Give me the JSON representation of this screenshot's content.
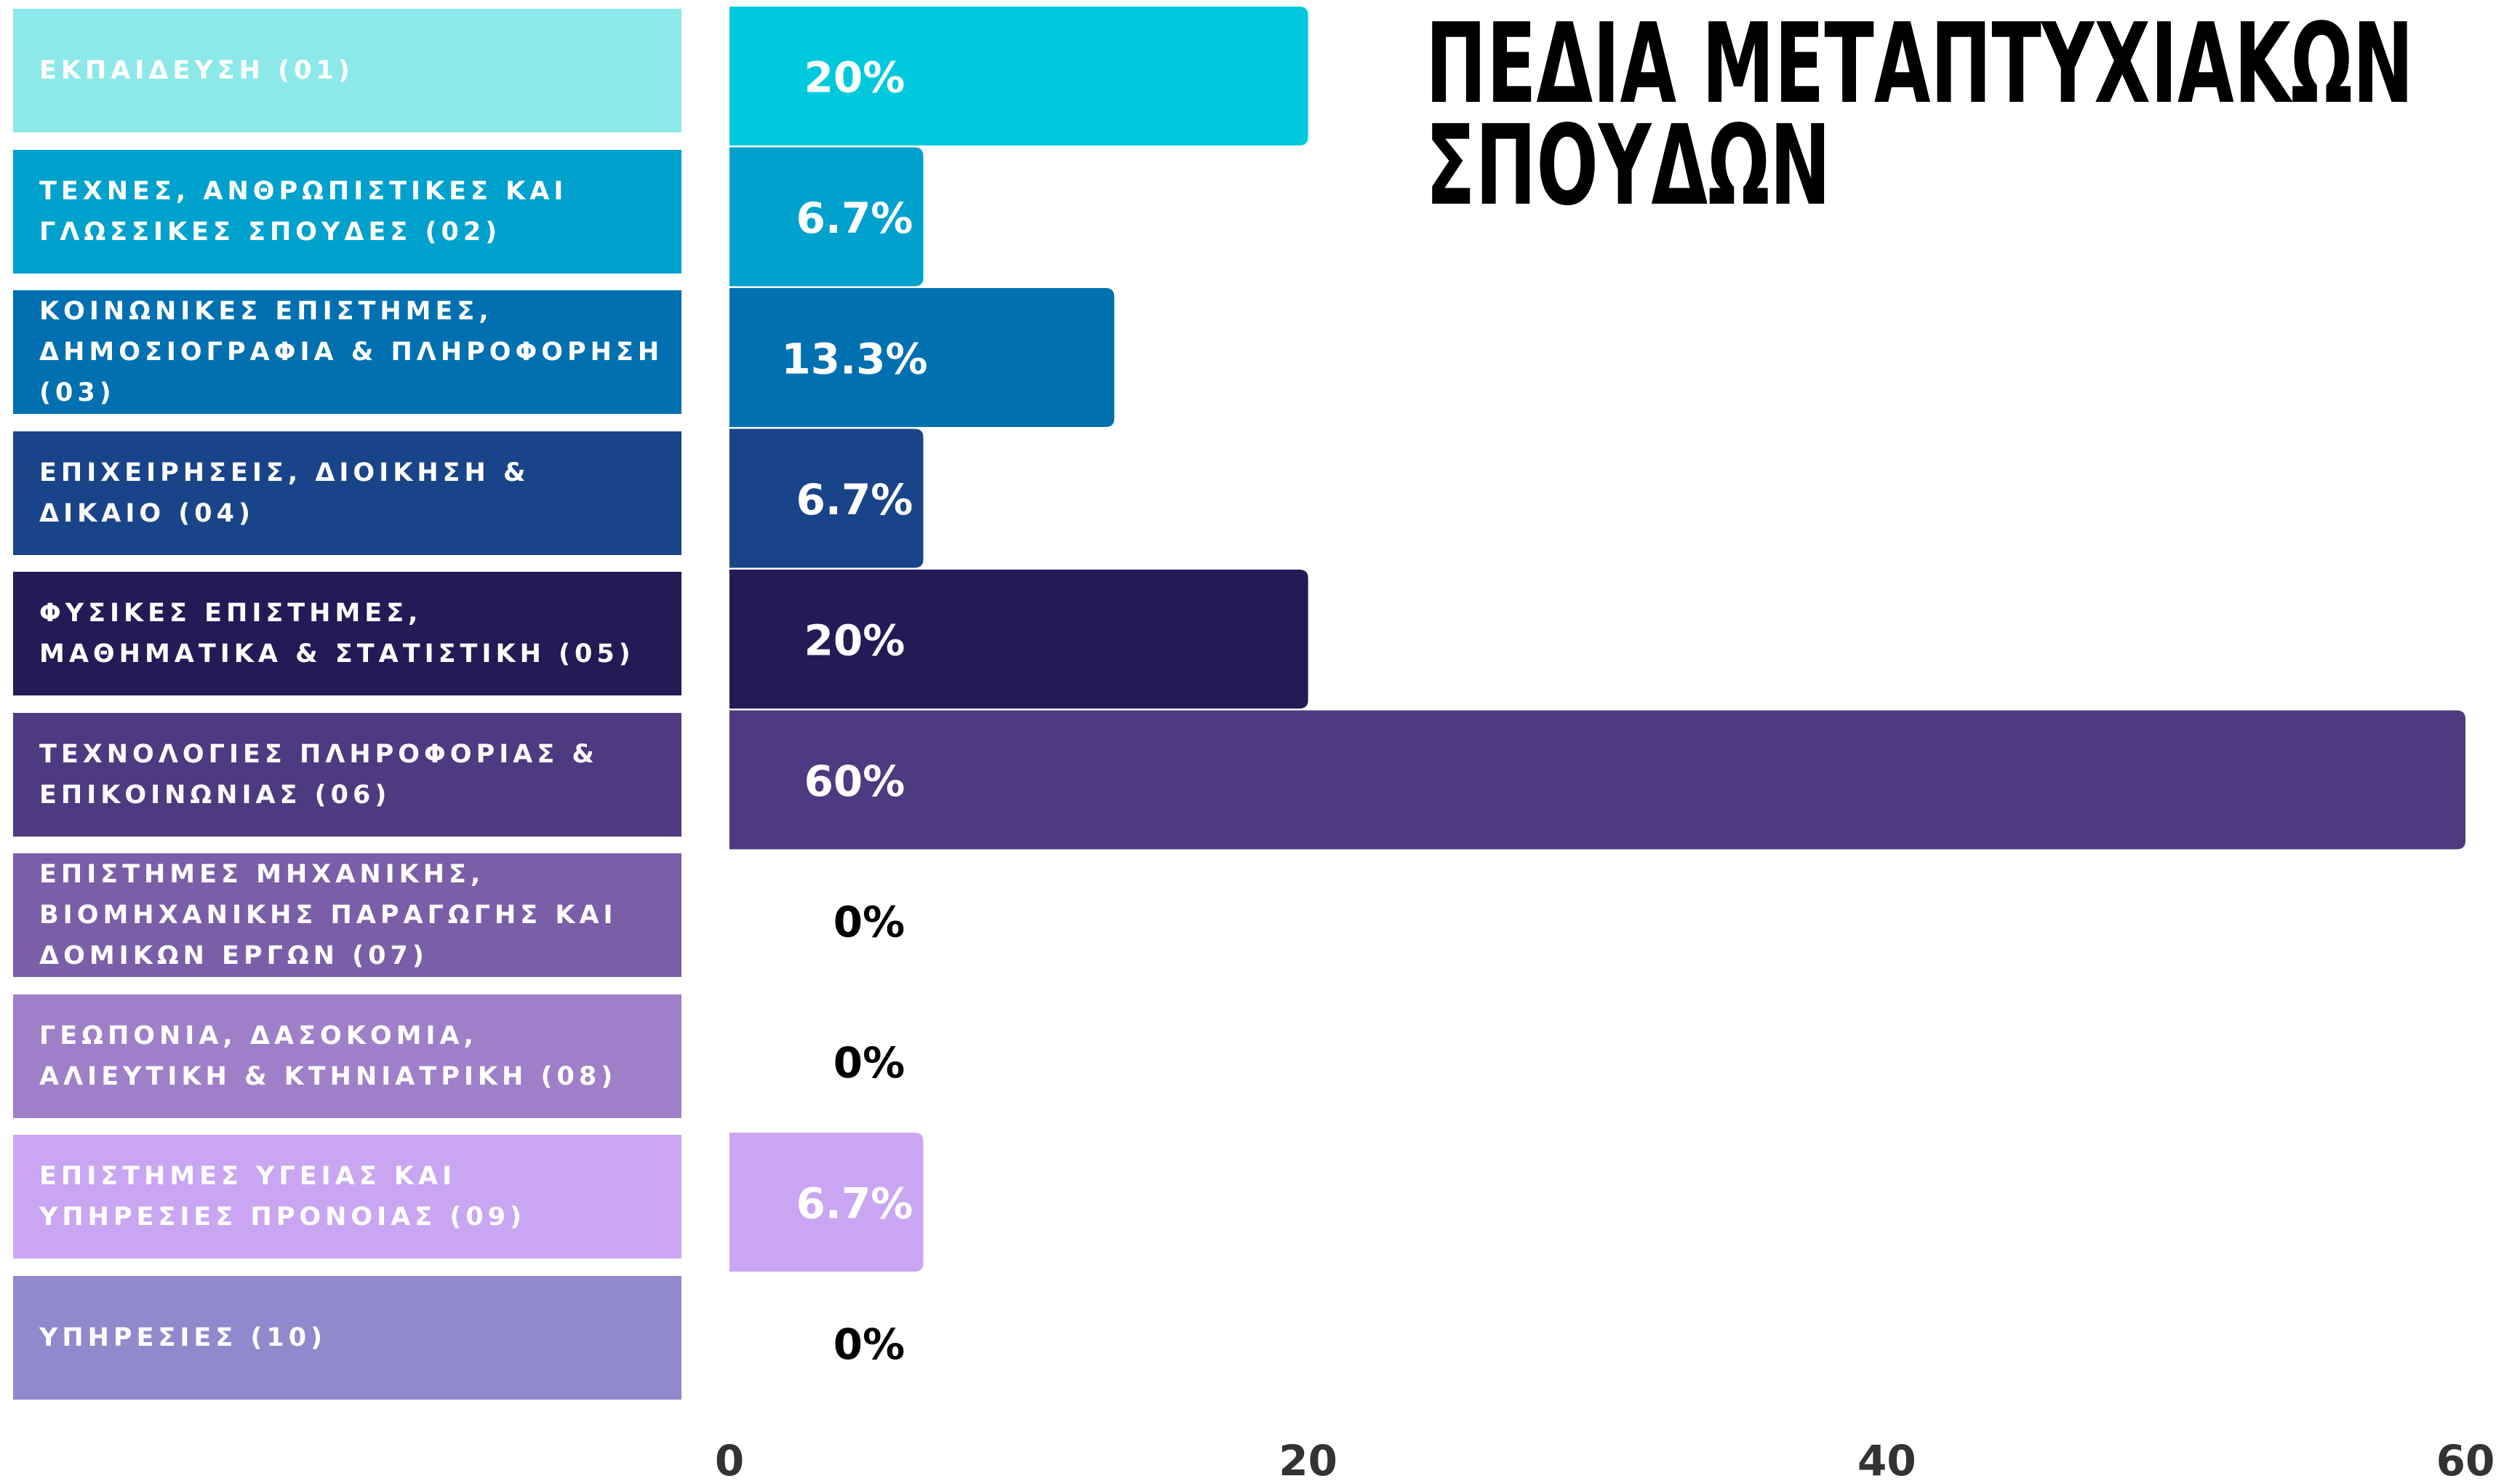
{
  "chart_data": {
    "type": "bar",
    "orientation": "horizontal",
    "title": "ΠΕΔΙΑ ΜΕΤΑΠΤΥΧΙΑΚΩΝ ΣΠΟΥΔΩΝ",
    "categories": [
      "ΕΚΠΑΙΔΕΥΣΗ (01)",
      "ΤΕΧΝΕΣ, ΑΝΘΡΩΠΙΣΤΙΚΕΣ ΚΑΙ ΓΛΩΣΣΙΚΕΣ ΣΠΟΥΔΕΣ (02)",
      "ΚΟΙΝΩΝΙΚΕΣ ΕΠΙΣΤΗΜΕΣ, ΔΗΜΟΣΙΟΓΡΑΦΙΑ & ΠΛΗΡΟΦΟΡΗΣΗ (03)",
      "ΕΠΙΧΕΙΡΗΣΕΙΣ, ΔΙΟΙΚΗΣΗ & ΔΙΚΑΙΟ (04)",
      "ΦΥΣΙΚΕΣ ΕΠΙΣΤΗΜΕΣ, ΜΑΘΗΜΑΤΙΚΑ & ΣΤΑΤΙΣΤΙΚΗ (05)",
      "ΤΕΧΝΟΛΟΓΙΕΣ ΠΛΗΡΟΦΟΡΙΑΣ & ΕΠΙΚΟΙΝΩΝΙΑΣ (06)",
      "ΕΠΙΣΤΗΜΕΣ ΜΗΧΑΝΙΚΗΣ, ΒΙΟΜΗΧΑΝΙΚΗΣ ΠΑΡΑΓΩΓΗΣ ΚΑΙ ΔΟΜΙΚΩΝ ΕΡΓΩΝ (07)",
      "ΓΕΩΠΟΝΙΑ, ΔΑΣΟΚΟΜΙΑ, ΑΛΙΕΥΤΙΚΗ & ΚΤΗΝΙΑΤΡΙΚΗ (08)",
      "ΕΠΙΣΤΗΜΕΣ ΥΓΕΙΑΣ ΚΑΙ ΥΠΗΡΕΣΙΕΣ ΠΡΟΝΟΙΑΣ (09)",
      "ΥΠΗΡΕΣΙΕΣ (10)"
    ],
    "values": [
      20,
      6.7,
      13.3,
      6.7,
      20,
      60,
      0,
      0,
      6.7,
      0
    ],
    "value_labels": [
      "20%",
      "6.7%",
      "13.3%",
      "6.7%",
      "20%",
      "60%",
      "0%",
      "0%",
      "6.7%",
      "0%"
    ],
    "colors": [
      "#00c9dd",
      "#00a1cd",
      "#0070b0",
      "#1a4489",
      "#241a56",
      "#4e3a80",
      "#7b5ea8",
      "#a07fc9",
      "#caa6f2",
      "#9089cc"
    ],
    "category_colors": [
      "#8de9e9",
      "#00a1cd",
      "#0070b0",
      "#1a4489",
      "#241a56",
      "#4e3a80",
      "#7b5ea8",
      "#a07fc9",
      "#caa6f2",
      "#9089cc"
    ],
    "xlim": [
      0,
      60
    ],
    "xticks": [
      0,
      20,
      40,
      60
    ],
    "grid": false
  }
}
